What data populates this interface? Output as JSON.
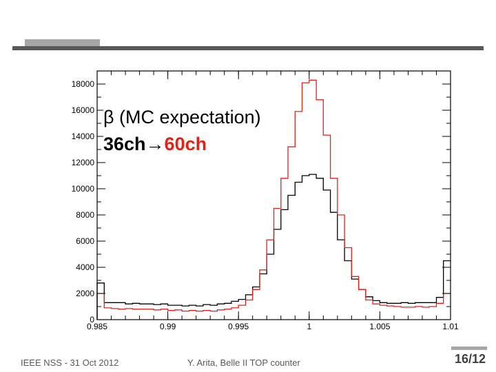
{
  "slide": {
    "title_line1": "β (MC expectation)",
    "title_line2_start": "36ch",
    "title_line2_arrow": "→",
    "title_line2_end": "60ch",
    "footer_left": "IEEE NSS - 31 Oct 2012",
    "footer_center": "Y. Arita, Belle II TOP counter",
    "page_number": "16/12"
  },
  "chart_data": {
    "type": "line",
    "drawstyle": "steps",
    "xlim": [
      0.985,
      1.01
    ],
    "ylim": [
      0,
      19000
    ],
    "xticks": [
      0.985,
      0.99,
      0.995,
      1,
      1.005,
      1.01
    ],
    "xtick_labels": [
      "0.985",
      "0.99",
      "0.995",
      "1",
      "1.005",
      "1.01"
    ],
    "yticks": [
      0,
      2000,
      4000,
      6000,
      8000,
      10000,
      12000,
      14000,
      16000,
      18000
    ],
    "ytick_labels": [
      "0",
      "2000",
      "4000",
      "6000",
      "8000",
      "10000",
      "12000",
      "14000",
      "16000",
      "18000"
    ],
    "x": [
      0.985,
      0.9855,
      0.986,
      0.9865,
      0.987,
      0.9875,
      0.988,
      0.9885,
      0.989,
      0.9895,
      0.99,
      0.9905,
      0.991,
      0.9915,
      0.992,
      0.9925,
      0.993,
      0.9935,
      0.994,
      0.9945,
      0.995,
      0.9955,
      0.996,
      0.9965,
      0.997,
      0.9975,
      0.998,
      0.9985,
      0.999,
      0.9995,
      1.0,
      1.0005,
      1.001,
      1.0015,
      1.002,
      1.0025,
      1.003,
      1.0035,
      1.004,
      1.0045,
      1.005,
      1.0055,
      1.006,
      1.0065,
      1.007,
      1.0075,
      1.008,
      1.0085,
      1.009,
      1.0095
    ],
    "series": [
      {
        "color": "#000000",
        "values": [
          2800,
          1300,
          1300,
          1300,
          1200,
          1250,
          1200,
          1200,
          1150,
          1200,
          1100,
          1100,
          1050,
          1100,
          1050,
          1150,
          1100,
          1200,
          1250,
          1400,
          1550,
          1900,
          2500,
          3500,
          5000,
          6900,
          8400,
          9500,
          10500,
          11000,
          11100,
          10800,
          9900,
          8200,
          6100,
          4500,
          3100,
          2300,
          1750,
          1450,
          1300,
          1250,
          1250,
          1300,
          1250,
          1300,
          1300,
          1300,
          1700,
          4500
        ]
      },
      {
        "color": "#e32119",
        "values": [
          2000,
          900,
          850,
          800,
          850,
          800,
          800,
          800,
          750,
          800,
          700,
          750,
          650,
          700,
          650,
          700,
          650,
          750,
          800,
          900,
          1100,
          1500,
          2300,
          3800,
          6100,
          8500,
          10800,
          13200,
          15900,
          18100,
          18300,
          16800,
          14100,
          10800,
          8000,
          5500,
          3300,
          2300,
          1500,
          1200,
          1100,
          1050,
          1000,
          950,
          950,
          1000,
          950,
          1000,
          1250,
          2000
        ]
      }
    ]
  }
}
